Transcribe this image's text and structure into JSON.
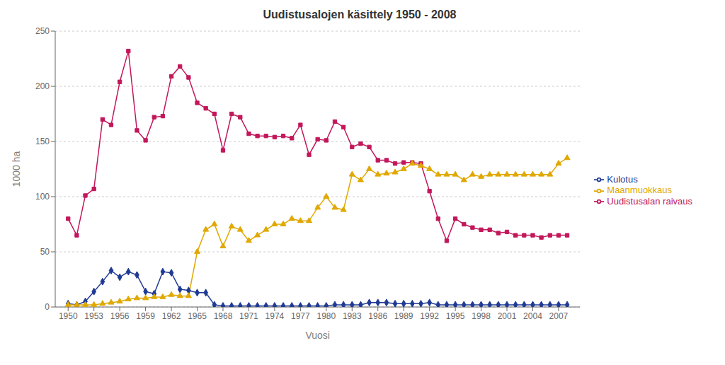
{
  "chart_data": {
    "type": "line",
    "title": "Uudistusalojen käsittely 1950 - 2008",
    "xlabel": "Vuosi",
    "ylabel": "1000 ha",
    "x": [
      1950,
      1951,
      1952,
      1953,
      1954,
      1955,
      1956,
      1957,
      1958,
      1959,
      1960,
      1961,
      1962,
      1963,
      1964,
      1965,
      1966,
      1967,
      1968,
      1969,
      1970,
      1971,
      1972,
      1973,
      1974,
      1975,
      1976,
      1977,
      1978,
      1979,
      1980,
      1981,
      1982,
      1983,
      1984,
      1985,
      1986,
      1987,
      1988,
      1989,
      1990,
      1991,
      1992,
      1993,
      1994,
      1995,
      1996,
      1997,
      1998,
      1999,
      2000,
      2001,
      2002,
      2003,
      2004,
      2005,
      2006,
      2007,
      2008
    ],
    "series": [
      {
        "name": "Kulotus",
        "color": "#1f3a93",
        "marker": "diamond",
        "values": [
          3,
          2,
          5,
          14,
          23,
          33,
          27,
          32,
          29,
          14,
          12,
          32,
          31,
          16,
          15,
          13,
          13,
          2,
          1,
          1,
          1,
          1,
          1,
          1,
          1,
          1,
          1,
          1,
          1,
          1,
          1,
          2,
          2,
          2,
          2,
          4,
          4,
          4,
          3,
          3,
          3,
          3,
          4,
          2,
          2,
          2,
          2,
          2,
          2,
          2,
          2,
          2,
          2,
          2,
          2,
          2,
          2,
          2,
          2
        ]
      },
      {
        "name": "Uudistusalan raivaus",
        "color": "#c2185b",
        "marker": "square",
        "values": [
          80,
          65,
          101,
          107,
          170,
          165,
          204,
          232,
          160,
          151,
          172,
          173,
          209,
          218,
          208,
          185,
          180,
          175,
          142,
          175,
          172,
          157,
          155,
          155,
          154,
          155,
          153,
          165,
          138,
          152,
          151,
          168,
          163,
          145,
          148,
          145,
          133,
          133,
          130,
          131,
          131,
          130,
          105,
          80,
          60,
          80,
          75,
          72,
          70,
          70,
          67,
          68,
          65,
          65,
          65,
          63,
          65,
          65,
          65
        ]
      },
      {
        "name": "Maanmuokkaus",
        "color": "#e0a800",
        "marker": "triangle",
        "values": [
          2,
          2,
          2,
          2,
          3,
          4,
          5,
          7,
          8,
          8,
          9,
          9,
          11,
          10,
          10,
          50,
          70,
          75,
          55,
          73,
          70,
          60,
          65,
          70,
          75,
          75,
          80,
          78,
          78,
          90,
          100,
          90,
          88,
          120,
          115,
          125,
          120,
          121,
          122,
          125,
          130,
          128,
          125,
          120,
          120,
          120,
          115,
          120,
          118,
          120,
          120,
          120,
          120,
          120,
          120,
          120,
          120,
          130,
          135
        ]
      }
    ],
    "xlim": [
      1948.5,
      2009.5
    ],
    "xticks": [
      1950,
      1953,
      1956,
      1959,
      1962,
      1965,
      1968,
      1971,
      1974,
      1977,
      1980,
      1983,
      1986,
      1989,
      1992,
      1995,
      1998,
      2001,
      2004,
      2007
    ],
    "ylim": [
      0,
      250
    ],
    "yticks": [
      0,
      50,
      100,
      150,
      200,
      250
    ],
    "grid": "y",
    "legend": "right"
  }
}
